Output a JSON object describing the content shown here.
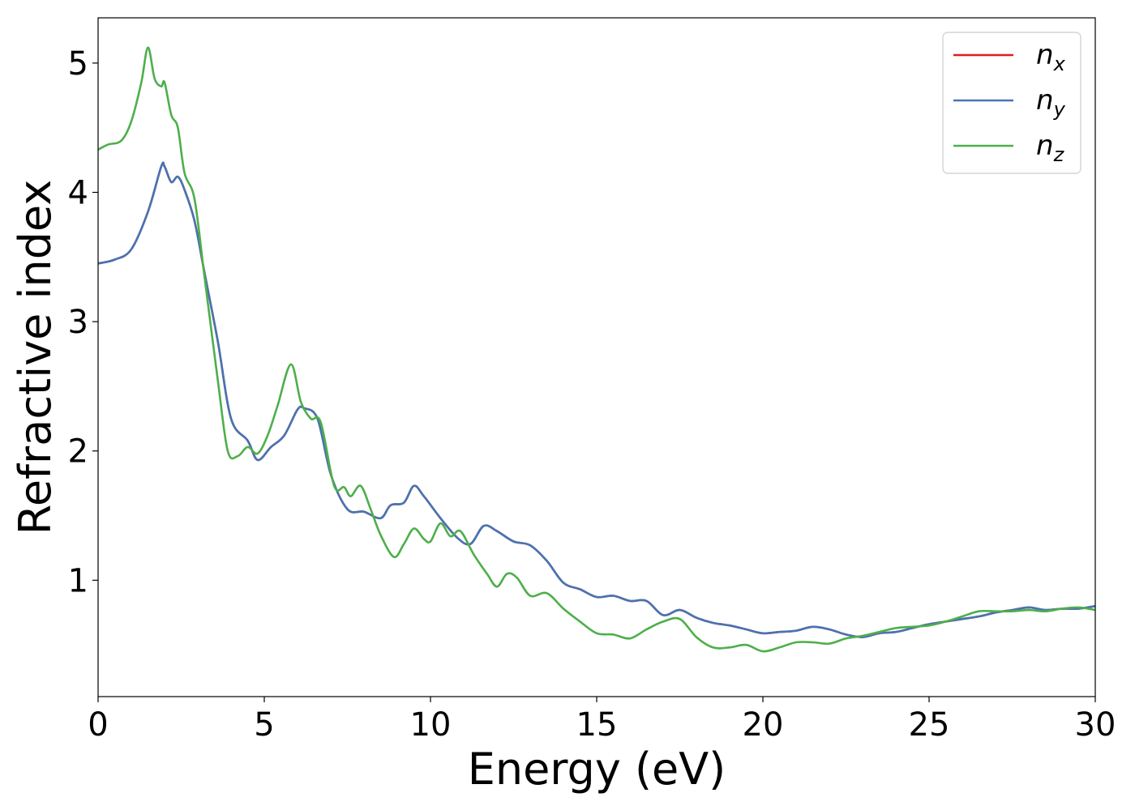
{
  "chart_data": {
    "type": "line",
    "title": "",
    "xlabel": "Energy (eV)",
    "ylabel": "Refractive index",
    "xlim": [
      0,
      30
    ],
    "ylim": [
      0.1,
      5.35
    ],
    "xticks": [
      0,
      5,
      10,
      15,
      20,
      25,
      30
    ],
    "xtick_labels": [
      "0",
      "5",
      "10",
      "15",
      "20",
      "25",
      "30"
    ],
    "yticks": [
      1,
      2,
      3,
      4,
      5
    ],
    "ytick_labels": [
      "1",
      "2",
      "3",
      "4",
      "5"
    ],
    "grid": false,
    "legend_position": "top-right",
    "series": [
      {
        "name": "n_x",
        "legend_main": "n",
        "legend_sub": "x",
        "color": "#e41a1c",
        "x": [
          0,
          0.5,
          1.0,
          1.5,
          1.9,
          2.0,
          2.2,
          2.4,
          2.6,
          2.9,
          3.2,
          3.6,
          4.0,
          4.5,
          4.8,
          5.2,
          5.6,
          6.0,
          6.2,
          6.6,
          7.0,
          7.5,
          8.0,
          8.5,
          8.8,
          9.2,
          9.5,
          9.8,
          10.3,
          10.8,
          11.2,
          11.6,
          12.0,
          12.5,
          13.0,
          13.5,
          14.0,
          14.5,
          15.0,
          15.5,
          16.0,
          16.5,
          17.0,
          17.5,
          18.0,
          18.5,
          19.0,
          19.5,
          20.0,
          20.5,
          21.0,
          21.5,
          22.0,
          22.5,
          23.0,
          23.5,
          24.0,
          24.5,
          25.0,
          25.5,
          26.0,
          26.5,
          27.0,
          27.5,
          28.0,
          28.5,
          29.0,
          29.5,
          30.0
        ],
        "y": [
          3.45,
          3.48,
          3.56,
          3.85,
          4.2,
          4.2,
          4.08,
          4.12,
          4.02,
          3.78,
          3.38,
          2.85,
          2.25,
          2.08,
          1.93,
          2.03,
          2.12,
          2.32,
          2.33,
          2.25,
          1.82,
          1.55,
          1.53,
          1.48,
          1.58,
          1.6,
          1.73,
          1.65,
          1.48,
          1.33,
          1.28,
          1.42,
          1.38,
          1.3,
          1.27,
          1.15,
          0.98,
          0.93,
          0.87,
          0.88,
          0.84,
          0.84,
          0.73,
          0.77,
          0.71,
          0.67,
          0.65,
          0.62,
          0.59,
          0.6,
          0.61,
          0.64,
          0.62,
          0.58,
          0.56,
          0.59,
          0.6,
          0.63,
          0.66,
          0.68,
          0.7,
          0.72,
          0.75,
          0.77,
          0.79,
          0.77,
          0.78,
          0.78,
          0.8
        ]
      },
      {
        "name": "n_y",
        "legend_main": "n",
        "legend_sub": "y",
        "color": "#4575b4",
        "x": [
          0,
          0.5,
          1.0,
          1.5,
          1.9,
          2.0,
          2.2,
          2.4,
          2.6,
          2.9,
          3.2,
          3.6,
          4.0,
          4.5,
          4.8,
          5.2,
          5.6,
          6.0,
          6.2,
          6.6,
          7.0,
          7.5,
          8.0,
          8.5,
          8.8,
          9.2,
          9.5,
          9.8,
          10.3,
          10.8,
          11.2,
          11.6,
          12.0,
          12.5,
          13.0,
          13.5,
          14.0,
          14.5,
          15.0,
          15.5,
          16.0,
          16.5,
          17.0,
          17.5,
          18.0,
          18.5,
          19.0,
          19.5,
          20.0,
          20.5,
          21.0,
          21.5,
          22.0,
          22.5,
          23.0,
          23.5,
          24.0,
          24.5,
          25.0,
          25.5,
          26.0,
          26.5,
          27.0,
          27.5,
          28.0,
          28.5,
          29.0,
          29.5,
          30.0
        ],
        "y": [
          3.45,
          3.48,
          3.56,
          3.85,
          4.2,
          4.2,
          4.08,
          4.12,
          4.02,
          3.78,
          3.38,
          2.85,
          2.25,
          2.08,
          1.93,
          2.03,
          2.12,
          2.32,
          2.33,
          2.25,
          1.82,
          1.55,
          1.53,
          1.48,
          1.58,
          1.6,
          1.73,
          1.65,
          1.48,
          1.33,
          1.28,
          1.42,
          1.38,
          1.3,
          1.27,
          1.15,
          0.98,
          0.93,
          0.87,
          0.88,
          0.84,
          0.84,
          0.73,
          0.77,
          0.71,
          0.67,
          0.65,
          0.62,
          0.59,
          0.6,
          0.61,
          0.64,
          0.62,
          0.58,
          0.56,
          0.59,
          0.6,
          0.63,
          0.66,
          0.68,
          0.7,
          0.72,
          0.75,
          0.77,
          0.79,
          0.77,
          0.78,
          0.78,
          0.8
        ]
      },
      {
        "name": "n_z",
        "legend_main": "n",
        "legend_sub": "z",
        "color": "#4daf4a",
        "x": [
          0,
          0.3,
          0.7,
          1.0,
          1.3,
          1.5,
          1.7,
          1.9,
          2.0,
          2.2,
          2.4,
          2.6,
          2.9,
          3.2,
          3.6,
          3.9,
          4.2,
          4.5,
          4.8,
          5.1,
          5.4,
          5.8,
          6.1,
          6.4,
          6.7,
          7.1,
          7.4,
          7.6,
          7.9,
          8.2,
          8.5,
          8.9,
          9.2,
          9.5,
          9.8,
          10.0,
          10.3,
          10.6,
          10.9,
          11.3,
          11.7,
          12.0,
          12.3,
          12.6,
          13.0,
          13.5,
          14.0,
          14.5,
          15.0,
          15.5,
          16.0,
          16.5,
          17.0,
          17.5,
          18.0,
          18.5,
          19.0,
          19.5,
          20.0,
          20.5,
          21.0,
          21.5,
          22.0,
          22.5,
          23.0,
          23.5,
          24.0,
          24.5,
          25.0,
          25.5,
          26.0,
          26.5,
          27.0,
          27.5,
          28.0,
          28.5,
          29.0,
          29.5,
          30.0
        ],
        "y": [
          4.33,
          4.37,
          4.4,
          4.55,
          4.85,
          5.12,
          4.88,
          4.82,
          4.85,
          4.6,
          4.5,
          4.15,
          3.95,
          3.35,
          2.55,
          2.0,
          1.96,
          2.03,
          1.98,
          2.12,
          2.35,
          2.67,
          2.38,
          2.25,
          2.22,
          1.73,
          1.72,
          1.65,
          1.73,
          1.55,
          1.35,
          1.18,
          1.28,
          1.4,
          1.32,
          1.3,
          1.44,
          1.34,
          1.38,
          1.2,
          1.05,
          0.95,
          1.05,
          1.02,
          0.88,
          0.9,
          0.78,
          0.68,
          0.59,
          0.58,
          0.55,
          0.62,
          0.68,
          0.7,
          0.56,
          0.48,
          0.48,
          0.5,
          0.45,
          0.48,
          0.52,
          0.52,
          0.51,
          0.55,
          0.57,
          0.6,
          0.63,
          0.64,
          0.65,
          0.68,
          0.72,
          0.76,
          0.76,
          0.76,
          0.77,
          0.76,
          0.78,
          0.79,
          0.77
        ]
      }
    ]
  }
}
